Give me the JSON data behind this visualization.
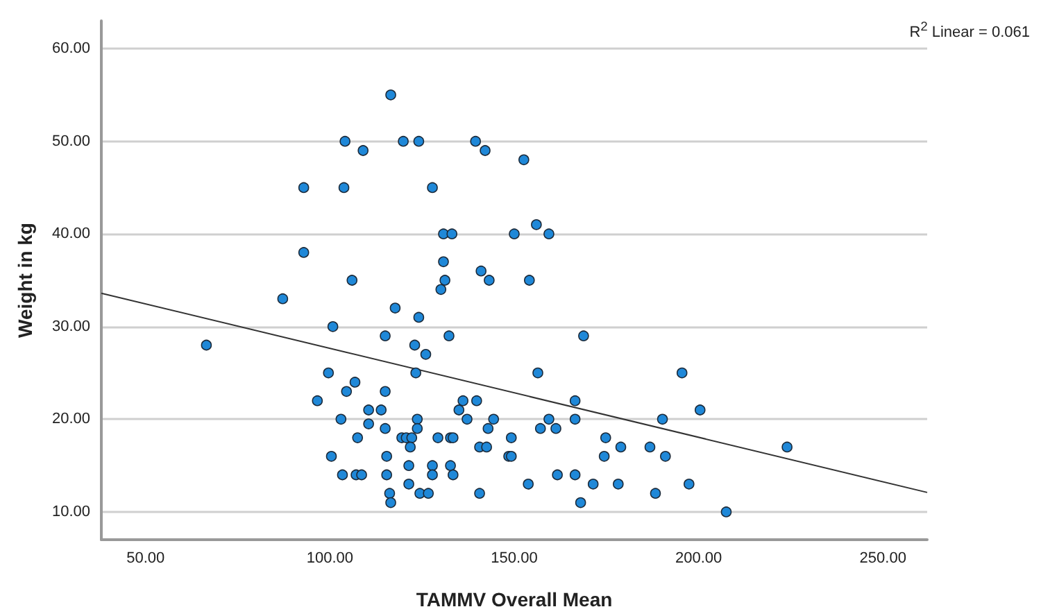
{
  "chart_data": {
    "type": "scatter",
    "xlabel": "TAMMV Overall Mean",
    "ylabel": "Weight in kg",
    "annotations": [
      "R$^{2}$ Linear = 0.061"
    ],
    "xlim": [
      38,
      262
    ],
    "ylim": [
      7,
      63
    ],
    "xticks": [
      {
        "value": 50,
        "label": "50.00"
      },
      {
        "value": 100,
        "label": "100.00"
      },
      {
        "value": 150,
        "label": "150.00"
      },
      {
        "value": 200,
        "label": "200.00"
      },
      {
        "value": 250,
        "label": "250.00"
      }
    ],
    "yticks": [
      {
        "value": 10,
        "label": "10.00"
      },
      {
        "value": 20,
        "label": "20.00"
      },
      {
        "value": 30,
        "label": "30.00"
      },
      {
        "value": 40,
        "label": "40.00"
      },
      {
        "value": 50,
        "label": "50.00"
      },
      {
        "value": 60,
        "label": "60.00"
      }
    ],
    "grid": "y",
    "marker": "circle",
    "series": [
      {
        "color": "#1f88d8",
        "x": [
          116.5,
          104.1,
          109,
          119.9,
          124.1,
          139.5,
          142.1,
          152.6,
          92.9,
          103.8,
          127.8,
          130.8,
          133.1,
          150,
          156,
          159.4,
          154.1,
          92.9,
          106,
          130.8,
          131.2,
          130.1,
          141,
          143.2,
          87.2,
          117.7,
          124.1,
          100.8,
          66.5,
          115,
          123,
          126,
          132.3,
          99.6,
          123.3,
          106.8,
          104.5,
          115,
          96.6,
          110.5,
          113.9,
          135,
          136.1,
          139.8,
          103,
          123.7,
          137.2,
          144.4,
          110.5,
          115,
          123.7,
          142.9,
          157.1,
          107.5,
          119.5,
          120.7,
          122.2,
          129.3,
          132.7,
          133.4,
          149.2,
          121.8,
          140.6,
          142.5,
          100.4,
          115.4,
          148.5,
          149.2,
          121.4,
          127.8,
          132.7,
          103.4,
          107.1,
          108.6,
          115.4,
          127.8,
          133.4,
          121.4,
          153.8,
          116.2,
          124.4,
          126.7,
          140.6,
          116.5,
          168.8,
          156.4,
          195.5,
          166.5,
          200.4,
          159.4,
          166.5,
          190.2,
          161.3,
          174.8,
          174.4,
          178.9,
          186.8,
          191,
          224,
          161.7,
          166.5,
          171.4,
          178.2,
          197.4,
          188.3,
          168,
          207.5
        ],
        "values": [
          55,
          50,
          49,
          50,
          50,
          50,
          49,
          48,
          45,
          45,
          45,
          40,
          40,
          40,
          41,
          40,
          35,
          38,
          35,
          37,
          35,
          34,
          36,
          35,
          33,
          32,
          31,
          30,
          28,
          29,
          28,
          27,
          29,
          25,
          25,
          24,
          23,
          23,
          22,
          21,
          21,
          21,
          22,
          22,
          20,
          20,
          20,
          20,
          19.5,
          19,
          19,
          19,
          19,
          18,
          18,
          18,
          18,
          18,
          18,
          18,
          18,
          17,
          17,
          17,
          16,
          16,
          16,
          16,
          15,
          15,
          15,
          14,
          14,
          14,
          14,
          14,
          14,
          13,
          13,
          12,
          12,
          12,
          12,
          11,
          29,
          25,
          25,
          22,
          21,
          20,
          20,
          20,
          19,
          18,
          16,
          17,
          17,
          16,
          17,
          14,
          14,
          13,
          13,
          13,
          12,
          11,
          10
        ]
      },
      {
        "type": "line",
        "marker": "none",
        "color": "#333333",
        "x": [
          38,
          262
        ],
        "values": [
          33.6,
          12.1
        ]
      }
    ]
  }
}
